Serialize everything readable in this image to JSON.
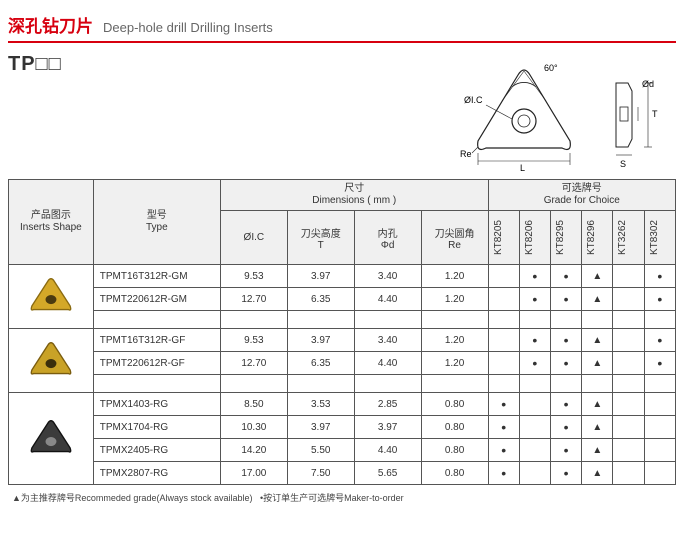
{
  "header": {
    "title_cn": "深孔钻刀片",
    "title_en": "Deep-hole drill  Drilling Inserts",
    "subtitle": "TP□□"
  },
  "diagram": {
    "angle_label": "60°",
    "dim_ic": "ØI.C",
    "dim_re": "Re",
    "dim_l": "L",
    "dim_d": "Ød",
    "dim_t": "T",
    "dim_s": "S",
    "tri_stroke": "#222222",
    "tri_fill": "#ffffff"
  },
  "table": {
    "hdr_shape_cn": "产品图示",
    "hdr_shape_en": "Inserts Shape",
    "hdr_type_cn": "型号",
    "hdr_type_en": "Type",
    "hdr_dim_cn": "尺寸",
    "hdr_dim_en": "Dimensions ( mm )",
    "hdr_grade_cn": "可选牌号",
    "hdr_grade_en": "Grade for Choice",
    "dim_cols": [
      {
        "label": "ØI.C"
      },
      {
        "label_cn": "刀尖高度",
        "label_en": "T"
      },
      {
        "label_cn": "内孔",
        "label_en": "Φd"
      },
      {
        "label_cn": "刀尖圆角",
        "label_en": "Re"
      }
    ],
    "grade_cols": [
      "KT8205",
      "KT8206",
      "KT8295",
      "KT8296",
      "KT3262",
      "KT8302"
    ],
    "groups": [
      {
        "shape_colors": {
          "face": "#d4a828",
          "edge": "#8a6a10",
          "hole": "#4a3a10"
        },
        "rows": [
          {
            "type": "TPMT16T312R-GM",
            "dims": [
              "9.53",
              "3.97",
              "3.40",
              "1.20"
            ],
            "marks": [
              "",
              "•",
              "•",
              "▲",
              "",
              "•"
            ]
          },
          {
            "type": "TPMT220612R-GM",
            "dims": [
              "12.70",
              "6.35",
              "4.40",
              "1.20"
            ],
            "marks": [
              "",
              "•",
              "•",
              "▲",
              "",
              "•"
            ]
          }
        ],
        "blank_after": true
      },
      {
        "shape_colors": {
          "face": "#c9a227",
          "edge": "#7a5c0e",
          "hole": "#3a2e0c"
        },
        "rows": [
          {
            "type": "TPMT16T312R-GF",
            "dims": [
              "9.53",
              "3.97",
              "3.40",
              "1.20"
            ],
            "marks": [
              "",
              "•",
              "•",
              "▲",
              "",
              "•"
            ]
          },
          {
            "type": "TPMT220612R-GF",
            "dims": [
              "12.70",
              "6.35",
              "4.40",
              "1.20"
            ],
            "marks": [
              "",
              "•",
              "•",
              "▲",
              "",
              "•"
            ]
          }
        ],
        "blank_after": true
      },
      {
        "shape_colors": {
          "face": "#3b3b3b",
          "edge": "#111111",
          "hole": "#888888"
        },
        "rows": [
          {
            "type": "TPMX1403-RG",
            "dims": [
              "8.50",
              "3.53",
              "2.85",
              "0.80"
            ],
            "marks": [
              "•",
              "",
              "•",
              "▲",
              "",
              ""
            ]
          },
          {
            "type": "TPMX1704-RG",
            "dims": [
              "10.30",
              "3.97",
              "3.97",
              "0.80"
            ],
            "marks": [
              "•",
              "",
              "•",
              "▲",
              "",
              ""
            ]
          },
          {
            "type": "TPMX2405-RG",
            "dims": [
              "14.20",
              "5.50",
              "4.40",
              "0.80"
            ],
            "marks": [
              "•",
              "",
              "•",
              "▲",
              "",
              ""
            ]
          },
          {
            "type": "TPMX2807-RG",
            "dims": [
              "17.00",
              "7.50",
              "5.65",
              "0.80"
            ],
            "marks": [
              "•",
              "",
              "•",
              "▲",
              "",
              ""
            ]
          }
        ],
        "blank_after": false
      }
    ]
  },
  "legend": {
    "rec_cn": "▲为主推荐牌号Recommeded grade(Always stock available)",
    "mto_cn": "•按订单生产可选牌号Maker-to-order"
  }
}
